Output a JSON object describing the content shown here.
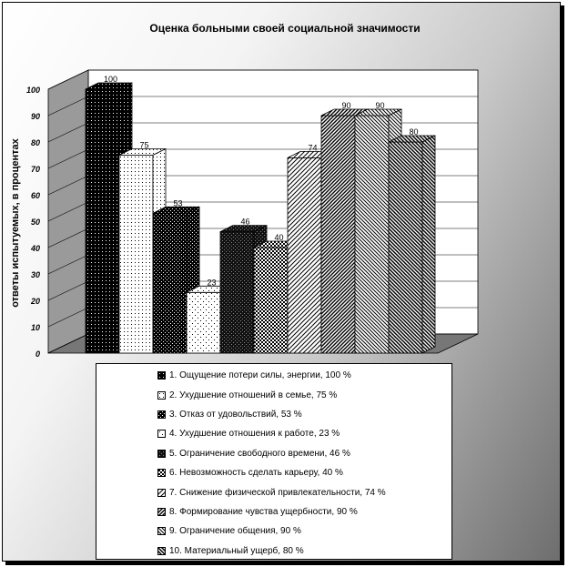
{
  "chart_data": {
    "type": "bar",
    "title": "Оценка больными своей социальной значимости",
    "ylabel": "ответы испытуемых, в процентах",
    "xlabel": "",
    "ylim": [
      0,
      100
    ],
    "yticks": [
      0,
      10,
      20,
      30,
      40,
      50,
      60,
      70,
      80,
      90,
      100
    ],
    "grid": true,
    "legend_position": "bottom",
    "style": "3d-bar",
    "series": [
      {
        "name": "1. Ощущение потери силы, энергии, 100 %",
        "value": 100,
        "label": "100",
        "pattern": "p1"
      },
      {
        "name": "2. Ухудшение отношений в семье, 75 %",
        "value": 75,
        "label": "75",
        "pattern": "p2"
      },
      {
        "name": "3. Отказ от удовольствий, 53 %",
        "value": 53,
        "label": "53",
        "pattern": "p3"
      },
      {
        "name": "4. Ухудшение отношения к работе, 23 %",
        "value": 23,
        "label": "23",
        "pattern": "p4"
      },
      {
        "name": "5. Ограничение свободного времени, 46 %",
        "value": 46,
        "label": "46",
        "pattern": "p5"
      },
      {
        "name": "6. Невозможность сделать карьеру, 40 %",
        "value": 40,
        "label": "40",
        "pattern": "p6"
      },
      {
        "name": "7. Снижение физической привлекательности, 74 %",
        "value": 74,
        "label": "74",
        "pattern": "p7"
      },
      {
        "name": "8. Формирование чувства ущербности, 90 %",
        "value": 90,
        "label": "90",
        "pattern": "p8"
      },
      {
        "name": "9. Ограничение общения, 90 %",
        "value": 90,
        "label": "90",
        "pattern": "p9"
      },
      {
        "name": "10. Материальный ущерб, 80 %",
        "value": 80,
        "label": "80",
        "pattern": "p10"
      }
    ]
  }
}
